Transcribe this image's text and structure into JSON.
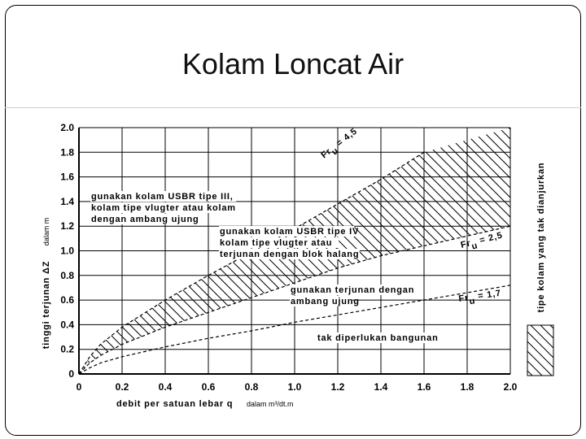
{
  "slide": {
    "title": "Kolam Loncat Air"
  },
  "chart_data": {
    "type": "line",
    "title": "Kolam Loncat Air",
    "xlabel": "debit per satuan lebar q",
    "xlabel_unit": "dalam m³/dt.m",
    "ylabel": "tinggi terjunan ΔZ",
    "ylabel_unit": "dalam m",
    "xlim": [
      0,
      2.0
    ],
    "ylim": [
      0,
      2.0
    ],
    "x_ticks": [
      0,
      0.2,
      0.4,
      0.6,
      0.8,
      1.0,
      1.2,
      1.4,
      1.6,
      1.8,
      2.0
    ],
    "x_tick_labels": [
      "0",
      "0.2",
      "0.4",
      "0.6",
      "0.8",
      "1.0",
      "1.2",
      "1.4",
      "1.6",
      "1.8",
      "2.0"
    ],
    "y_ticks": [
      0,
      0.2,
      0.4,
      0.6,
      0.8,
      1.0,
      1.2,
      1.4,
      1.6,
      1.8,
      2.0
    ],
    "y_tick_labels": [
      "0",
      "0.2",
      "0.4",
      "0.6",
      "0.8",
      "1.0",
      "1.2",
      "1.4",
      "1.6",
      "1.8",
      "2.0"
    ],
    "grid": true,
    "series": [
      {
        "label_main": "Fr",
        "label_sub": "u",
        "label_value": "= 4,5",
        "x": [
          0,
          0.05,
          0.1,
          0.2,
          0.4,
          0.6,
          0.8,
          1.0,
          1.2,
          1.4,
          1.6
        ],
        "y": [
          0,
          0.14,
          0.24,
          0.38,
          0.6,
          0.8,
          0.99,
          1.18,
          1.38,
          1.58,
          1.8
        ]
      },
      {
        "label_main": "Fr",
        "label_sub": "u",
        "label_value": "= 2,5",
        "x": [
          0,
          0.05,
          0.1,
          0.2,
          0.4,
          0.6,
          0.8,
          1.0,
          1.2,
          1.4,
          1.6,
          1.8,
          2.0
        ],
        "y": [
          0,
          0.09,
          0.15,
          0.24,
          0.38,
          0.5,
          0.62,
          0.74,
          0.86,
          0.96,
          1.04,
          1.12,
          1.2
        ]
      },
      {
        "label_main": "Fr",
        "label_sub": "u",
        "label_value": "= 1,7",
        "x": [
          0,
          0.05,
          0.1,
          0.2,
          0.4,
          0.6,
          0.8,
          1.0,
          1.2,
          1.4,
          1.6,
          1.8,
          2.0
        ],
        "y": [
          0,
          0.05,
          0.09,
          0.14,
          0.22,
          0.29,
          0.35,
          0.42,
          0.48,
          0.54,
          0.6,
          0.66,
          0.72
        ]
      }
    ],
    "region_labels": [
      {
        "lines": [
          "gunakan kolam USBR tipe III,",
          "kolam tipe vlugter atau kolam",
          "dengan ambang ujung"
        ]
      },
      {
        "lines": [
          "gunakan kolam USBR tipe IV",
          "kolam tipe vlugter atau",
          "terjunan dengan blok halang"
        ]
      },
      {
        "lines": [
          "gunakan terjunan dengan",
          "ambang ujung"
        ]
      },
      {
        "lines": [
          "tak diperlukan bangunan"
        ]
      }
    ],
    "legend": {
      "position": "right",
      "label": "tipe kolam yang tak dianjurkan"
    }
  }
}
